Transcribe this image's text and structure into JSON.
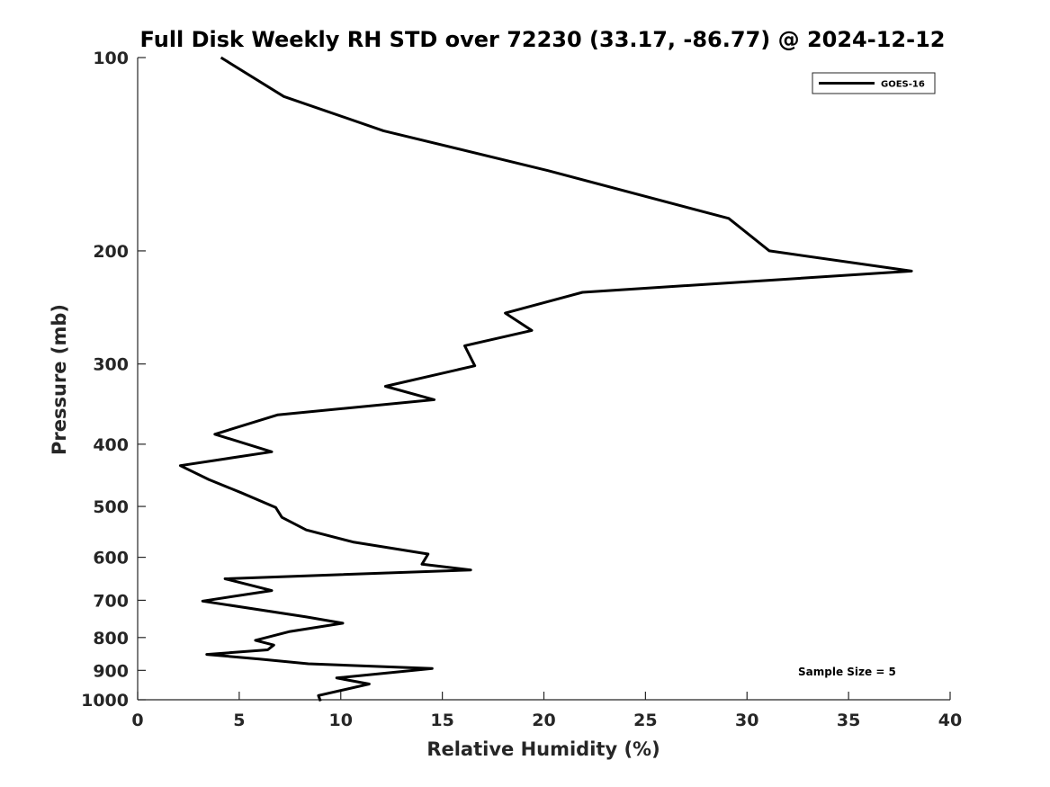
{
  "chart_data": {
    "type": "line",
    "title": "Full Disk Weekly RH STD over 72230 (33.17, -86.77) @ 2024-12-12",
    "xlabel": "Relative Humidity (%)",
    "ylabel": "Pressure (mb)",
    "xlim": [
      0,
      40
    ],
    "ylim": [
      100,
      1000
    ],
    "y_scale": "log",
    "y_inverted": true,
    "x_ticks": [
      0,
      5,
      10,
      15,
      20,
      25,
      30,
      35,
      40
    ],
    "y_ticks": [
      100,
      200,
      300,
      400,
      500,
      600,
      700,
      800,
      900,
      1000
    ],
    "grid": false,
    "legend_position": "top-right",
    "annotation": "Sample Size = 5",
    "series": [
      {
        "name": "GOES-16",
        "color": "#000000",
        "x": [
          4.1,
          7.2,
          12.1,
          20.2,
          29.1,
          31.1,
          38.1,
          21.9,
          18.1,
          19.4,
          16.1,
          16.6,
          12.2,
          14.6,
          6.9,
          3.8,
          6.6,
          2.1,
          3.5,
          5.1,
          6.8,
          7.1,
          8.3,
          10.6,
          14.3,
          14.0,
          16.4,
          4.3,
          6.6,
          3.2,
          8.3,
          10.1,
          7.5,
          5.8,
          6.7,
          6.4,
          3.4,
          6.0,
          8.4,
          14.5,
          9.8,
          11.4,
          8.9,
          9.0
        ],
        "y": [
          100,
          115,
          130,
          150,
          178,
          200,
          215,
          232,
          250,
          266,
          281,
          302,
          325,
          341,
          360,
          386,
          411,
          432,
          454,
          476,
          502,
          520,
          544,
          568,
          593,
          615,
          628,
          648,
          676,
          702,
          743,
          760,
          783,
          808,
          822,
          836,
          850,
          864,
          879,
          894,
          925,
          945,
          985,
          1005
        ]
      }
    ]
  }
}
